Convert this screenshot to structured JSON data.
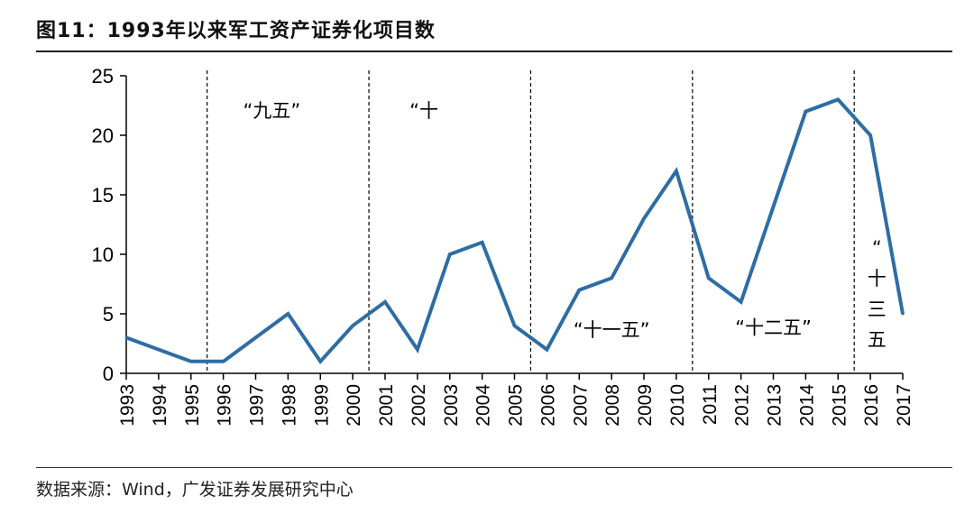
{
  "figure": {
    "label": "图11：",
    "title": "1993年以来军工资产证券化项目数"
  },
  "source": "数据来源：Wind，广发证券发展研究中心",
  "chart_data": {
    "type": "line",
    "title": "1993年以来军工资产证券化项目数",
    "xlabel": "",
    "ylabel": "",
    "ylim": [
      0,
      25
    ],
    "yticks": [
      0,
      5,
      10,
      15,
      20,
      25
    ],
    "categories": [
      "1993",
      "1994",
      "1995",
      "1996",
      "1997",
      "1998",
      "1999",
      "2000",
      "2001",
      "2002",
      "2003",
      "2004",
      "2005",
      "2006",
      "2007",
      "2008",
      "2009",
      "2010",
      "2011",
      "2012",
      "2013",
      "2014",
      "2015",
      "2016",
      "2017"
    ],
    "series": [
      {
        "name": "军工资产证券化项目数",
        "values": [
          3,
          2,
          1,
          1,
          3,
          5,
          1,
          4,
          6,
          2,
          10,
          11,
          4,
          2,
          7,
          8,
          13,
          17,
          8,
          6,
          14,
          22,
          23,
          20,
          5
        ]
      }
    ],
    "line_color": "#2E6DA4",
    "period_dividers": [
      1995.5,
      2000.5,
      2005.5,
      2010.5,
      2015.5
    ],
    "period_labels": [
      {
        "text": "“九五”",
        "x": 1997.5,
        "y": 21.5,
        "vertical": false
      },
      {
        "text": "“十",
        "x": 2002.2,
        "y": 21.5,
        "vertical": false
      },
      {
        "text": "“十一五”",
        "x": 2008.0,
        "y": 3.1,
        "vertical": false
      },
      {
        "text": "“十二五”",
        "x": 2013.0,
        "y": 3.3,
        "vertical": false
      },
      {
        "text": "“十三五",
        "x": 2016.2,
        "y": 10.0,
        "vertical": true
      }
    ]
  }
}
